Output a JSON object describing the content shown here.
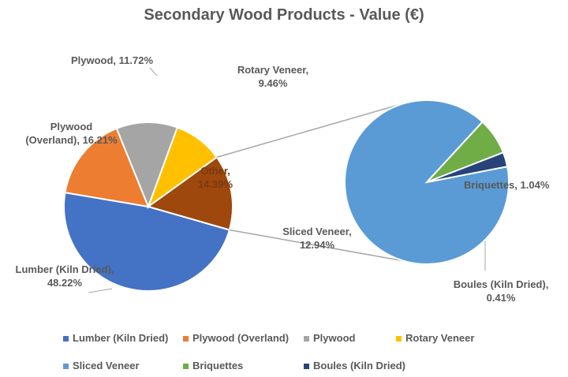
{
  "chart_data": {
    "type": "pie-of-pie",
    "title": "Secondary Wood Products - Value (€)",
    "series": [
      {
        "name": "Lumber (Kiln Dried)",
        "value": 48.22,
        "value_label": "Lumber (Kiln Dried), 48.22%",
        "color": "#4472c4",
        "pie": "main"
      },
      {
        "name": "Plywood (Overland)",
        "value": 16.21,
        "value_label": "Plywood (Overland), 16.21%",
        "color": "#ed7d31",
        "pie": "main"
      },
      {
        "name": "Plywood",
        "value": 11.72,
        "value_label": "Plywood, 11.72%",
        "color": "#a5a5a5",
        "pie": "main"
      },
      {
        "name": "Rotary Veneer",
        "value": 9.46,
        "value_label": "Rotary Veneer, 9.46%",
        "color": "#ffc000",
        "pie": "main"
      },
      {
        "name": "Sliced Veneer",
        "value": 12.94,
        "value_label": "Sliced Veneer, 12.94%",
        "color": "#5b9bd5",
        "pie": "secondary"
      },
      {
        "name": "Briquettes",
        "value": 1.04,
        "value_label": "Briquettes, 1.04%",
        "color": "#70ad47",
        "pie": "secondary"
      },
      {
        "name": "Boules (Kiln Dried)",
        "value": 0.41,
        "value_label": "Boules (Kiln Dried), 0.41%",
        "color": "#264478",
        "pie": "secondary"
      }
    ],
    "other": {
      "value": 14.39,
      "value_label": "Other, 14.39%",
      "color": "#9e480e"
    },
    "legend": "bottom"
  }
}
